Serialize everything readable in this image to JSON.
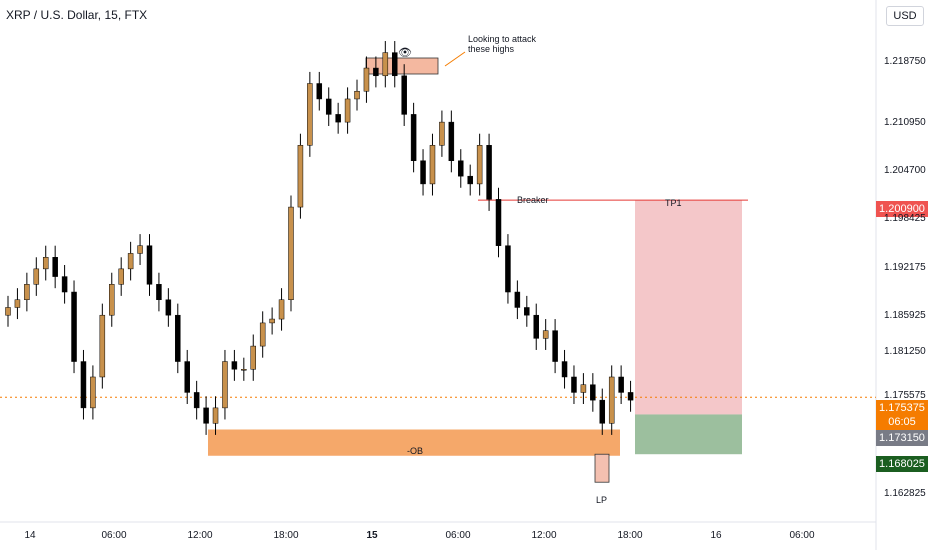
{
  "title": "XRP / U.S. Dollar, 15, FTX",
  "currency_button": "USD",
  "price_axis": [
    "1.218750",
    "1.210950",
    "1.204700",
    "1.198425",
    "1.192175",
    "1.185925",
    "1.181250",
    "1.175575",
    "1.162825"
  ],
  "time_axis": [
    {
      "label": "14",
      "bold": false
    },
    {
      "label": "06:00",
      "bold": false
    },
    {
      "label": "12:00",
      "bold": false
    },
    {
      "label": "18:00",
      "bold": false
    },
    {
      "label": "15",
      "bold": true
    },
    {
      "label": "06:00",
      "bold": false
    },
    {
      "label": "12:00",
      "bold": false
    },
    {
      "label": "18:00",
      "bold": false
    },
    {
      "label": "16",
      "bold": false
    },
    {
      "label": "06:00",
      "bold": false
    }
  ],
  "price_tags": {
    "tp": {
      "value": "1.200900",
      "color": "#ef5350"
    },
    "current": {
      "value": "1.175375",
      "time": "06:05",
      "color": "#f57c00"
    },
    "entry": {
      "value": "1.173150",
      "color": "#787b86"
    },
    "sl": {
      "value": "1.168025",
      "color": "#1b5e20"
    }
  },
  "annotations": {
    "highs_note": "Looking to attack these highs",
    "eye_icon": "👁",
    "breaker": "Breaker",
    "tp1": "TP1",
    "ob": "-OB",
    "lp": "LP"
  },
  "colors": {
    "bull": "#c8914c",
    "bear": "#000000",
    "ob_zone": "#f5a86a",
    "tp_zone": "#f4c7c9",
    "sl_zone": "#9cbf9e",
    "breaker_line": "#e53935",
    "current_line": "#f57c00"
  },
  "chart_data": {
    "type": "candlestick",
    "title": "XRP / U.S. Dollar, 15, FTX",
    "series": [
      {
        "values": [
          1.187,
          1.188,
          1.19,
          1.192,
          1.1935,
          1.191,
          1.189,
          1.18,
          1.174,
          1.178,
          1.186,
          1.19,
          1.192,
          1.194,
          1.195,
          1.19,
          1.188,
          1.186,
          1.18,
          1.176,
          1.174,
          1.172,
          1.174,
          1.18,
          1.179,
          1.179,
          1.182,
          1.185,
          1.1855,
          1.188,
          1.2,
          1.208,
          1.216,
          1.214,
          1.212,
          1.211,
          1.214,
          1.215,
          1.218,
          1.217,
          1.22,
          1.217,
          1.212,
          1.206,
          1.203,
          1.208,
          1.211,
          1.206,
          1.204,
          1.203,
          1.208,
          1.201,
          1.195,
          1.189,
          1.187,
          1.186,
          1.183,
          1.184,
          1.18,
          1.178,
          1.176,
          1.177,
          1.175,
          1.172,
          1.178,
          1.176,
          1.175
        ]
      }
    ],
    "levels": {
      "tp": 1.2009,
      "current": 1.175375,
      "entry": 1.17315,
      "sl": 1.168025
    },
    "ylim": [
      1.16,
      1.225
    ],
    "grid": true
  }
}
